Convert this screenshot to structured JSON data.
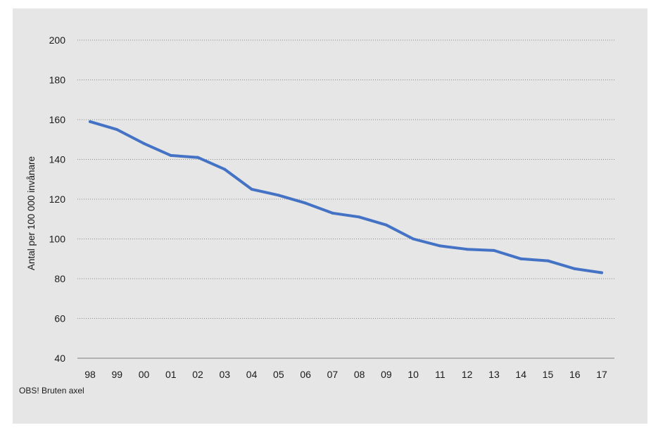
{
  "colors": {
    "panel_background": "#e6e6e6",
    "series": "#4472c4"
  },
  "footnote": "OBS! Bruten axel",
  "chart_data": {
    "type": "line",
    "title": "",
    "xlabel": "",
    "ylabel": "Antal per 100 000 invånare",
    "categories": [
      "98",
      "99",
      "00",
      "01",
      "02",
      "03",
      "04",
      "05",
      "06",
      "07",
      "08",
      "09",
      "10",
      "11",
      "12",
      "13",
      "14",
      "15",
      "16",
      "17"
    ],
    "series": [
      {
        "values": [
          159,
          155,
          148,
          142,
          141,
          135,
          125,
          122,
          118,
          113,
          111,
          107,
          100,
          96.5,
          94.8,
          94.2,
          90,
          89,
          85,
          83
        ]
      }
    ],
    "ylim": [
      40,
      200
    ],
    "yticks": [
      40,
      60,
      80,
      100,
      120,
      140,
      160,
      180,
      200
    ],
    "broken_axis": true,
    "grid": "horizontal-dotted",
    "legend": "none"
  }
}
